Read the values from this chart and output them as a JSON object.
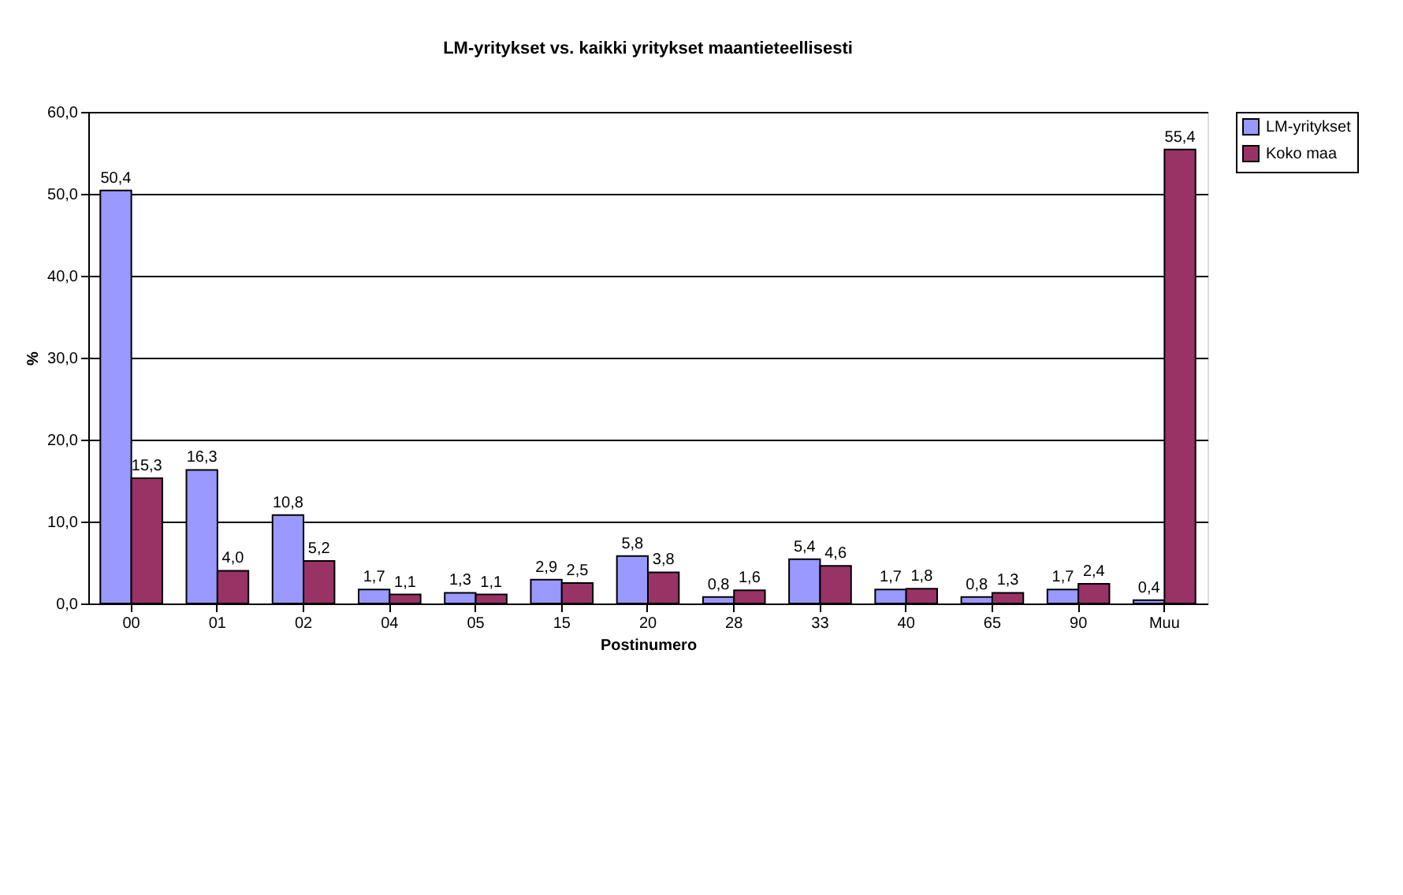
{
  "chart_data": {
    "type": "bar",
    "title": "LM-yritykset vs. kaikki yritykset maantieteellisesti",
    "xlabel": "Postinumero",
    "ylabel": "%",
    "categories": [
      "00",
      "01",
      "02",
      "04",
      "05",
      "15",
      "20",
      "28",
      "33",
      "40",
      "65",
      "90",
      "Muu"
    ],
    "series": [
      {
        "name": "LM-yritykset",
        "color": "#9999ff",
        "values": [
          50.4,
          16.3,
          10.8,
          1.7,
          1.3,
          2.9,
          5.8,
          0.8,
          5.4,
          1.7,
          0.8,
          1.7,
          0.4
        ],
        "value_labels": [
          "50,4",
          "16,3",
          "10,8",
          "1,7",
          "1,3",
          "2,9",
          "5,8",
          "0,8",
          "5,4",
          "1,7",
          "0,8",
          "1,7",
          "0,4"
        ]
      },
      {
        "name": "Koko maa",
        "color": "#993366",
        "values": [
          15.3,
          4.0,
          5.2,
          1.1,
          1.1,
          2.5,
          3.8,
          1.6,
          4.6,
          1.8,
          1.3,
          2.4,
          55.4
        ],
        "value_labels": [
          "15,3",
          "4,0",
          "5,2",
          "1,1",
          "1,1",
          "2,5",
          "3,8",
          "1,6",
          "4,6",
          "1,8",
          "1,3",
          "2,4",
          "55,4"
        ]
      }
    ],
    "ylim": [
      0,
      60
    ],
    "yticks": [
      {
        "value": 0,
        "label": "0,0"
      },
      {
        "value": 10,
        "label": "10,0"
      },
      {
        "value": 20,
        "label": "20,0"
      },
      {
        "value": 30,
        "label": "30,0"
      },
      {
        "value": 40,
        "label": "40,0"
      },
      {
        "value": 50,
        "label": "50,0"
      },
      {
        "value": 60,
        "label": "60,0"
      }
    ],
    "grid": "y",
    "legend": "right"
  }
}
